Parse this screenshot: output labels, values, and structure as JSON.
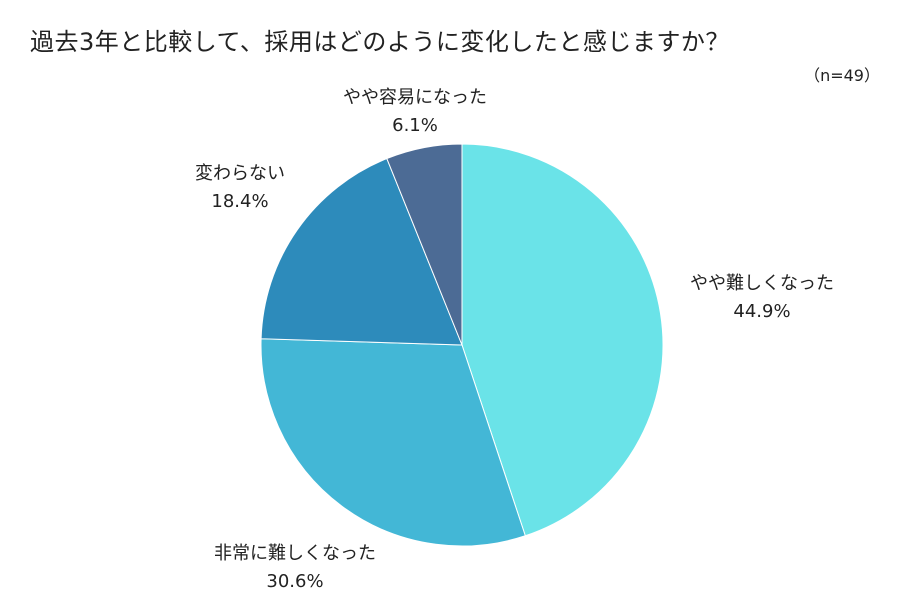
{
  "chart_data": {
    "type": "pie",
    "title": "過去3年と比較して、採用はどのように変化したと感じますか？",
    "note": "（n=49）",
    "start": "12 o'clock",
    "direction": "clockwise",
    "slices": [
      {
        "label": "やや難しくなった",
        "value": 44.9,
        "value_label": "44.9%",
        "color": "#6ae3e8"
      },
      {
        "label": "非常に難しくなった",
        "value": 30.6,
        "value_label": "30.6%",
        "color": "#43b7d6"
      },
      {
        "label": "変わらない",
        "value": 18.4,
        "value_label": "18.4%",
        "color": "#2d8bbb"
      },
      {
        "label": "やや容易になった",
        "value": 6.1,
        "value_label": "6.1%",
        "color": "#4c6b95"
      }
    ]
  }
}
